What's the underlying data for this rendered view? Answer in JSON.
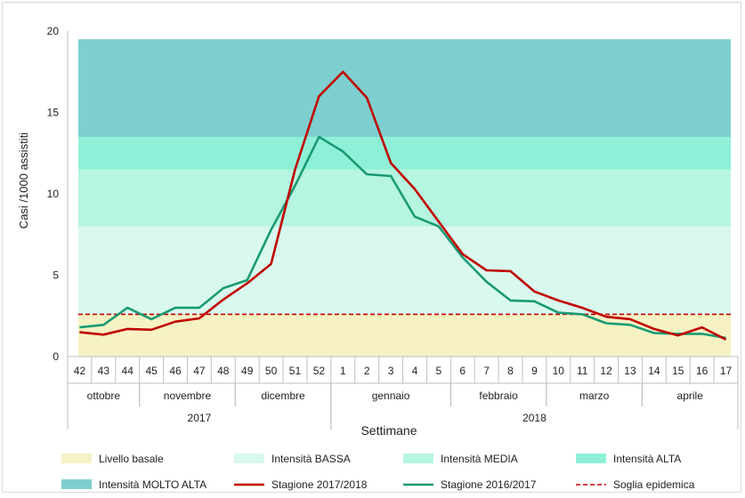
{
  "chart_data": {
    "type": "line",
    "ylabel": "Casi /1000 assistiti",
    "xlabel": "Settimane",
    "ylim": [
      0,
      20
    ],
    "yticks": [
      0,
      5,
      10,
      15,
      20
    ],
    "grid": false,
    "legend_position": "bottom",
    "weeks": [
      "42",
      "43",
      "44",
      "45",
      "46",
      "47",
      "48",
      "49",
      "50",
      "51",
      "52",
      "1",
      "2",
      "3",
      "4",
      "5",
      "6",
      "7",
      "8",
      "9",
      "10",
      "11",
      "12",
      "13",
      "14",
      "15",
      "16",
      "17"
    ],
    "months": [
      {
        "label": "ottobre",
        "start": 0,
        "end": 3
      },
      {
        "label": "novembre",
        "start": 3,
        "end": 7
      },
      {
        "label": "dicembre",
        "start": 7,
        "end": 11
      },
      {
        "label": "gennaio",
        "start": 11,
        "end": 16
      },
      {
        "label": "febbraio",
        "start": 16,
        "end": 20
      },
      {
        "label": "marzo",
        "start": 20,
        "end": 24
      },
      {
        "label": "aprile",
        "start": 24,
        "end": 28
      }
    ],
    "years": [
      {
        "label": "2017",
        "start": 0,
        "end": 11
      },
      {
        "label": "2018",
        "start": 11,
        "end": 28
      }
    ],
    "bands": [
      {
        "name": "Livello basale",
        "from": 0,
        "to": 2.6,
        "color": "#f6f2c4"
      },
      {
        "name": "Intensità BASSA",
        "from": 2.6,
        "to": 8.0,
        "color": "#d9f9ee"
      },
      {
        "name": "Intensità MEDIA",
        "from": 8.0,
        "to": 11.5,
        "color": "#b6f5e0"
      },
      {
        "name": "Intensità ALTA",
        "from": 11.5,
        "to": 13.5,
        "color": "#8ef1d7"
      },
      {
        "name": "Intensità MOLTO ALTA",
        "from": 13.5,
        "to": 19.5,
        "color": "#7ecfcf"
      }
    ],
    "threshold": {
      "name": "Soglia epidemica",
      "value": 2.6,
      "color": "#c00000"
    },
    "series": [
      {
        "name": "Stagione 2017/2018",
        "color": "#c00000",
        "values": [
          1.5,
          1.35,
          1.7,
          1.65,
          2.15,
          2.35,
          3.5,
          4.5,
          5.7,
          11.5,
          16.0,
          17.5,
          15.9,
          11.9,
          10.3,
          8.3,
          6.3,
          5.3,
          5.25,
          4.0,
          3.45,
          3.0,
          2.45,
          2.3,
          1.7,
          1.3,
          1.8,
          1.05
        ]
      },
      {
        "name": "Stagione 2016/2017",
        "color": "#1a9a74",
        "values": [
          1.8,
          1.95,
          3.0,
          2.3,
          3.0,
          3.0,
          4.2,
          4.7,
          7.8,
          10.5,
          13.5,
          12.6,
          11.2,
          11.1,
          8.6,
          8.0,
          6.1,
          4.6,
          3.45,
          3.4,
          2.7,
          2.6,
          2.05,
          1.95,
          1.45,
          1.4,
          1.4,
          1.15
        ]
      }
    ]
  }
}
